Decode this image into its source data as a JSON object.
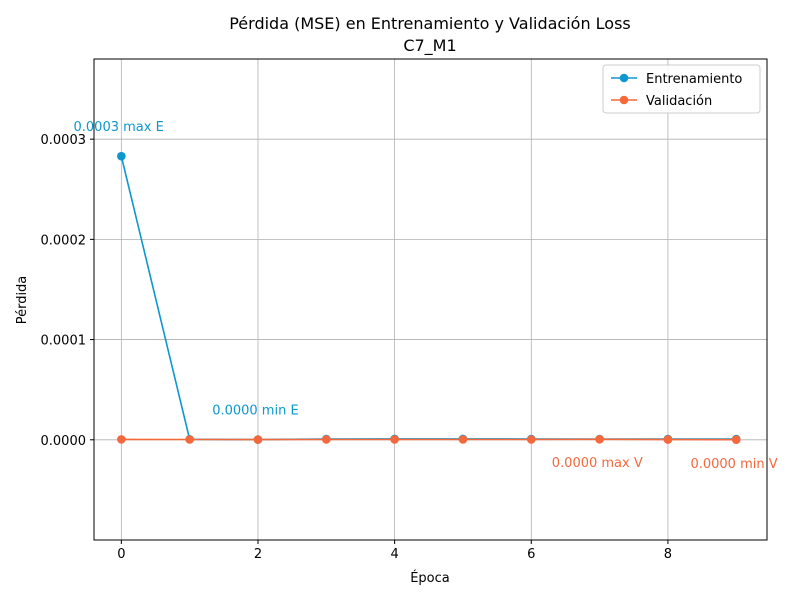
{
  "colors": {
    "train": "#0d97cf",
    "val": "#f4683c",
    "grid": "#b0b0b0",
    "axis": "#000000"
  },
  "chart_data": {
    "type": "line",
    "title": "Pérdida (MSE) en Entrenamiento y Validación Loss",
    "subtitle": "C7_M1",
    "xlabel": "Época",
    "ylabel": "Pérdida",
    "xlim": [
      -0.4,
      9.45
    ],
    "ylim": [
      -0.0001,
      0.00038
    ],
    "x_ticks": [
      0,
      2,
      4,
      6,
      8
    ],
    "x_tick_labels": [
      "0",
      "2",
      "4",
      "6",
      "8"
    ],
    "y_ticks": [
      0.0,
      0.0001,
      0.0002,
      0.0003
    ],
    "y_tick_labels": [
      "0.0000",
      "0.0001",
      "0.0002",
      "0.0003"
    ],
    "grid": true,
    "legend_position": "top-right",
    "x": [
      0,
      1,
      2,
      3,
      4,
      5,
      6,
      7,
      8,
      9
    ],
    "series": [
      {
        "name": "Entrenamiento",
        "color_key": "train",
        "values": [
          0.000283,
          5e-07,
          2e-07,
          8e-07,
          9e-07,
          9e-07,
          8e-07,
          8e-07,
          7e-07,
          7e-07
        ]
      },
      {
        "name": "Validación",
        "color_key": "val",
        "values": [
          4e-07,
          3e-07,
          2e-07,
          3e-07,
          3e-07,
          3e-07,
          3e-07,
          5e-07,
          2e-07,
          1e-07
        ]
      }
    ],
    "annotations": [
      {
        "text": "0.0003 max E",
        "series": 0,
        "x": -0.7,
        "y": 0.000308,
        "color_key": "train"
      },
      {
        "text": "0.0000 min E",
        "series": 0,
        "x": 1.33,
        "y": 2.5e-05,
        "color_key": "train"
      },
      {
        "text": "0.0000 max V",
        "series": 1,
        "x": 6.3,
        "y": -2.7e-05,
        "color_key": "val"
      },
      {
        "text": "0.0000 min V",
        "series": 1,
        "x": 8.33,
        "y": -2.8e-05,
        "color_key": "val"
      }
    ]
  }
}
